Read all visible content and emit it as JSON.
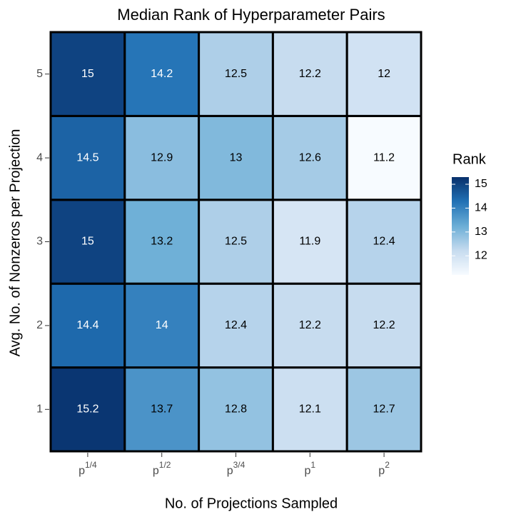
{
  "chart_data": {
    "type": "heatmap",
    "title": "Median Rank of Hyperparameter Pairs",
    "x_label": "No. of Projections Sampled",
    "y_label": "Avg. No. of Nonzeros per Projection",
    "x_categories": [
      {
        "base": "p",
        "sup": "1/4"
      },
      {
        "base": "p",
        "sup": "1/2"
      },
      {
        "base": "p",
        "sup": "3/4"
      },
      {
        "base": "p",
        "sup": "1"
      },
      {
        "base": "p",
        "sup": "2"
      }
    ],
    "y_categories": [
      1,
      2,
      3,
      4,
      5
    ],
    "values": [
      [
        15.2,
        13.7,
        12.8,
        12.1,
        12.7
      ],
      [
        14.4,
        14,
        12.4,
        12.2,
        12.2
      ],
      [
        15,
        13.2,
        12.5,
        11.9,
        12.4
      ],
      [
        14.5,
        12.9,
        13,
        12.6,
        11.2
      ],
      [
        15,
        14.2,
        12.5,
        12.2,
        12
      ]
    ],
    "legend_title": "Rank",
    "clim": [
      11.2,
      15.3
    ],
    "legend_ticks": [
      12,
      13,
      14,
      15
    ],
    "colors": [
      "#f7fbff",
      "#c6dbef",
      "#6baed6",
      "#2171b5",
      "#08306b"
    ]
  }
}
